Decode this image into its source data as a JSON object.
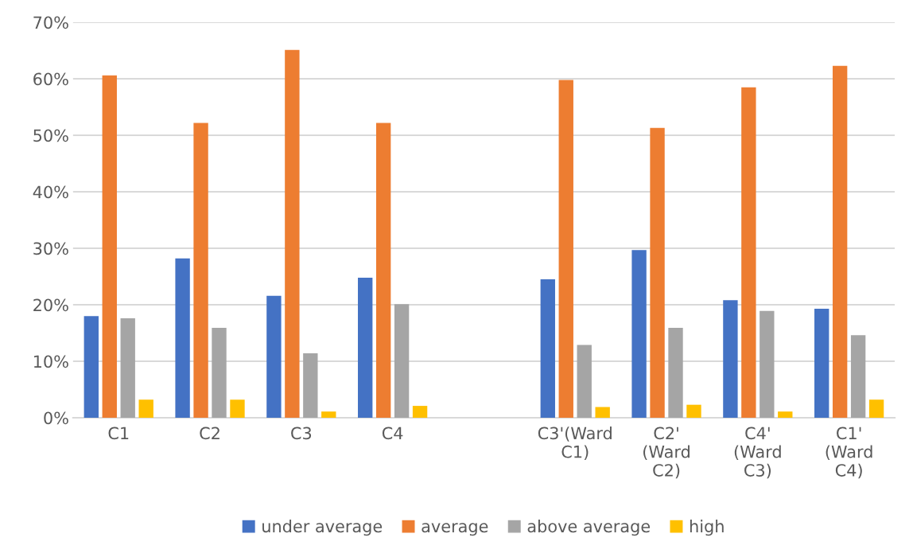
{
  "chart_data": {
    "type": "bar",
    "categories": [
      "C1",
      "C2",
      "C3",
      "C4",
      null,
      "C3'(Ward\nC1)",
      "C2'\n(Ward\nC2)",
      "C4'\n(Ward\nC3)",
      "C1'\n(Ward\nC4)"
    ],
    "series": [
      {
        "name": "under average",
        "color": "#4472c4",
        "values": [
          18.0,
          28.2,
          21.6,
          24.8,
          null,
          24.5,
          29.7,
          20.8,
          19.3
        ]
      },
      {
        "name": "average",
        "color": "#ed7d31",
        "values": [
          60.6,
          52.2,
          65.1,
          52.2,
          null,
          59.8,
          51.3,
          58.5,
          62.3
        ]
      },
      {
        "name": "above average",
        "color": "#a5a5a5",
        "values": [
          17.6,
          15.9,
          11.4,
          20.1,
          null,
          12.9,
          15.9,
          18.9,
          14.6
        ]
      },
      {
        "name": "high",
        "color": "#ffc000",
        "values": [
          3.2,
          3.2,
          1.1,
          2.1,
          null,
          1.9,
          2.3,
          1.1,
          3.2
        ]
      }
    ],
    "ylim": [
      0,
      70
    ],
    "yticks": [
      {
        "value": 0,
        "label": "0%"
      },
      {
        "value": 10,
        "label": "10%"
      },
      {
        "value": 20,
        "label": "20%"
      },
      {
        "value": 30,
        "label": "30%"
      },
      {
        "value": 40,
        "label": "40%"
      },
      {
        "value": 50,
        "label": "50%"
      },
      {
        "value": 60,
        "label": "60%"
      },
      {
        "value": 70,
        "label": "70%"
      }
    ],
    "grid": "y",
    "legend": "bottom"
  }
}
